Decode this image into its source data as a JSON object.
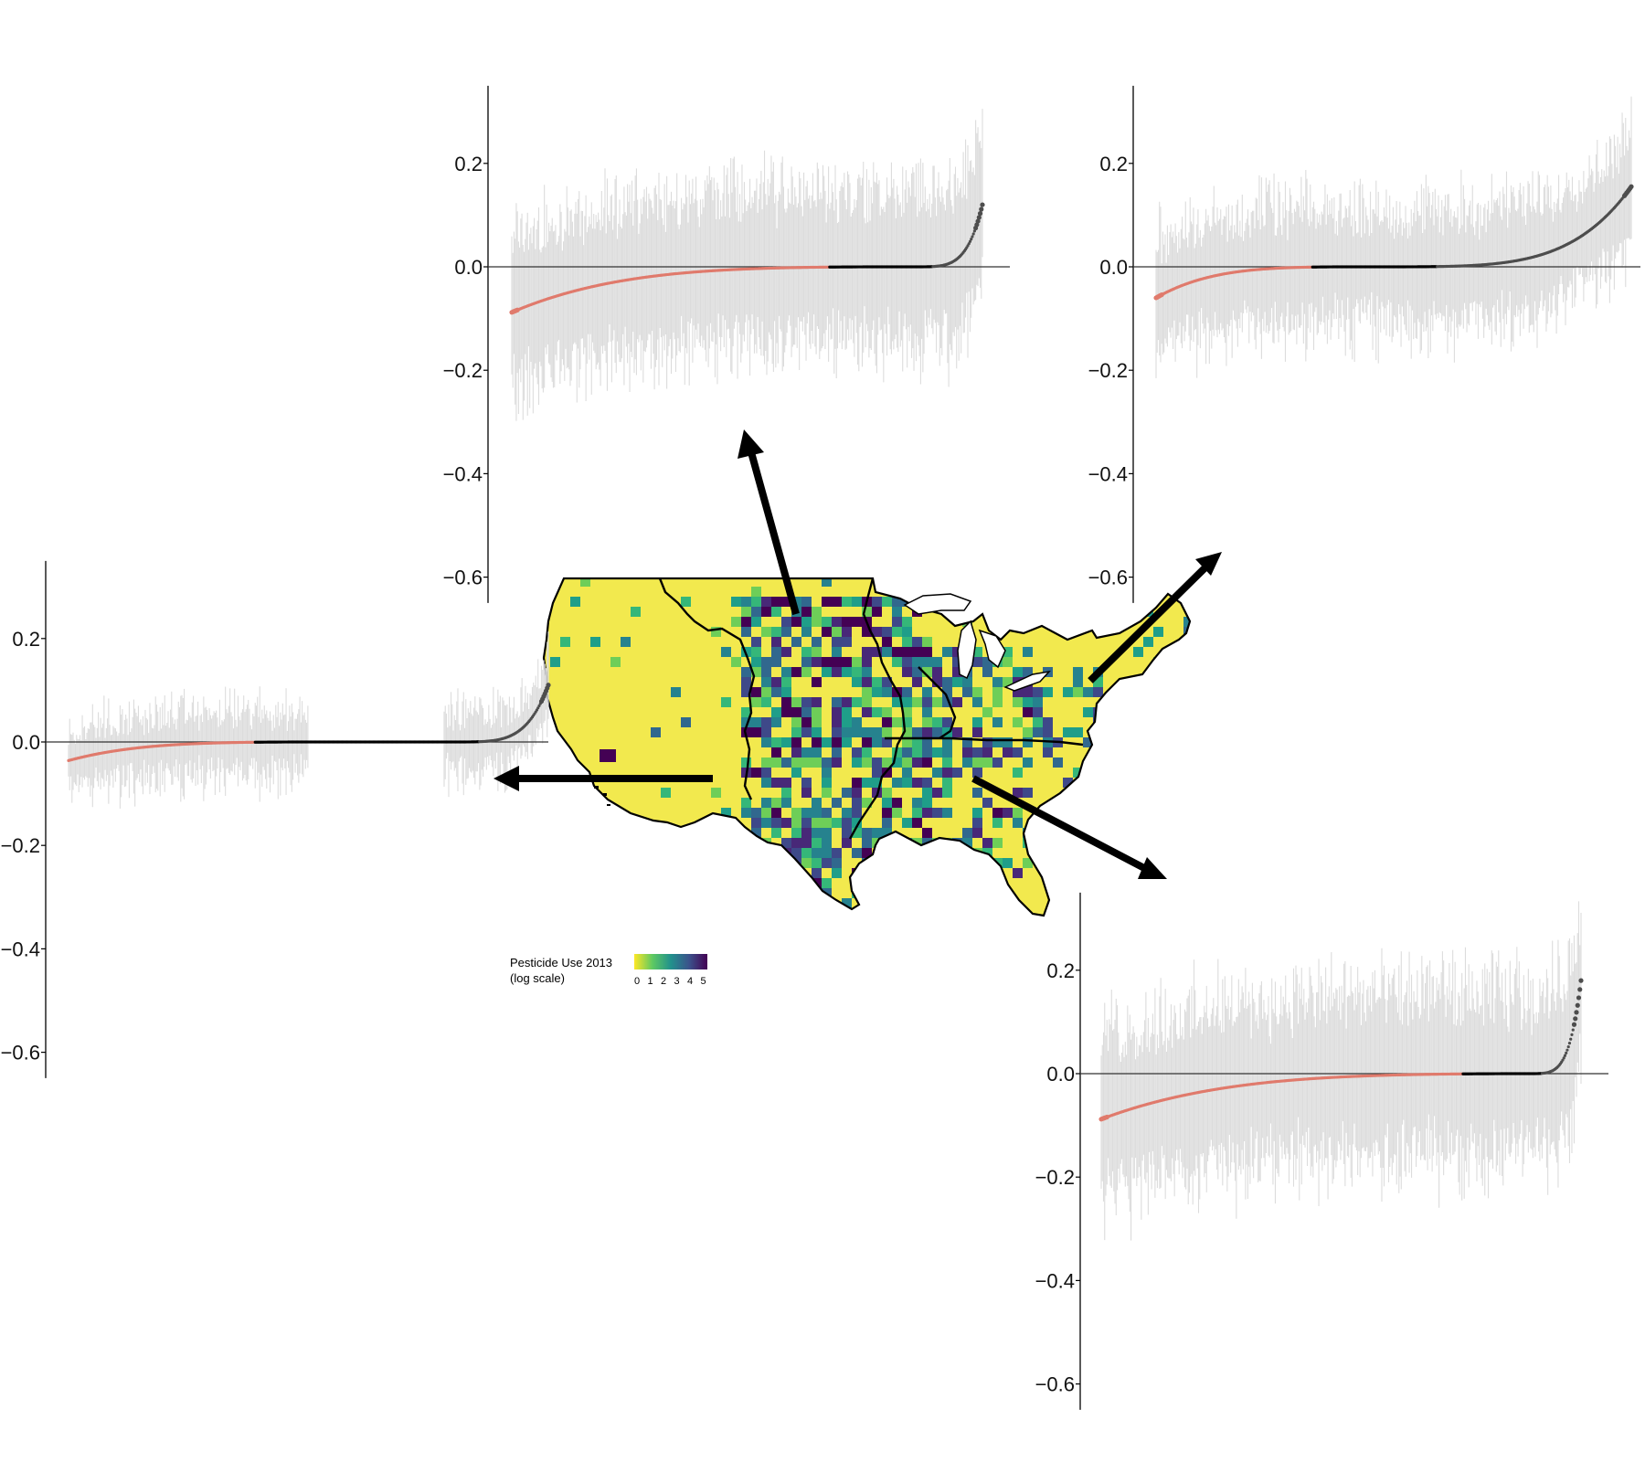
{
  "colors": {
    "negative": "#e07a6c",
    "positive": "#4d4d4d",
    "interval": "#dcdcdc",
    "axis": "#000000",
    "low_use": "#f2e94e",
    "map_palette": [
      "#f3e74f",
      "#b5de2b",
      "#6ece58",
      "#35b779",
      "#1f9e89",
      "#26828e",
      "#31688e",
      "#3e4989",
      "#482878",
      "#440154"
    ]
  },
  "legend": {
    "title_line1": "Pesticide Use 2013",
    "title_line2": " (log scale)",
    "ticks": [
      "0",
      "1",
      "2",
      "3",
      "4",
      "5"
    ]
  },
  "chart_data": [
    {
      "type": "scatter",
      "region": "west",
      "y_ticks": [
        "0.2",
        "0.0",
        "−0.2",
        "−0.4",
        "−0.6"
      ],
      "y_tick_values": [
        0.2,
        0.0,
        -0.2,
        -0.4,
        -0.6
      ],
      "ylim": [
        -0.65,
        0.35
      ],
      "n_points": 420,
      "sorted_estimate_range": [
        -0.045,
        0.11
      ],
      "negative_fraction": 0.5,
      "zero_fraction": 0.28,
      "interval_halfwidth_range": [
        0.03,
        0.1
      ]
    },
    {
      "type": "scatter",
      "region": "midwest",
      "y_ticks": [
        "0.2",
        "0.0",
        "−0.2",
        "−0.4",
        "−0.6"
      ],
      "y_tick_values": [
        0.2,
        0.0,
        -0.2,
        -0.4,
        -0.6
      ],
      "ylim": [
        -0.65,
        0.35
      ],
      "n_points": 420,
      "sorted_estimate_range": [
        -0.11,
        0.12
      ],
      "negative_fraction": 0.79,
      "zero_fraction": 0.05,
      "interval_halfwidth_range": [
        0.12,
        0.2
      ]
    },
    {
      "type": "scatter",
      "region": "northeast",
      "y_ticks": [
        "0.2",
        "0.0",
        "−0.2",
        "−0.4",
        "−0.6"
      ],
      "y_tick_values": [
        0.2,
        0.0,
        -0.2,
        -0.4,
        -0.6
      ],
      "ylim": [
        -0.65,
        0.35
      ],
      "n_points": 420,
      "sorted_estimate_range": [
        -0.075,
        0.155
      ],
      "negative_fraction": 0.4,
      "zero_fraction": 0.0,
      "interval_halfwidth_range": [
        0.08,
        0.16
      ]
    },
    {
      "type": "scatter",
      "region": "south",
      "y_ticks": [
        "0.2",
        "0.0",
        "−0.2",
        "−0.4",
        "−0.6"
      ],
      "y_tick_values": [
        0.2,
        0.0,
        -0.2,
        -0.4,
        -0.6
      ],
      "ylim": [
        -0.65,
        0.35
      ],
      "n_points": 420,
      "sorted_estimate_range": [
        -0.11,
        0.18
      ],
      "negative_fraction": 0.88,
      "zero_fraction": 0.0,
      "interval_halfwidth_range": [
        0.12,
        0.22
      ]
    }
  ]
}
